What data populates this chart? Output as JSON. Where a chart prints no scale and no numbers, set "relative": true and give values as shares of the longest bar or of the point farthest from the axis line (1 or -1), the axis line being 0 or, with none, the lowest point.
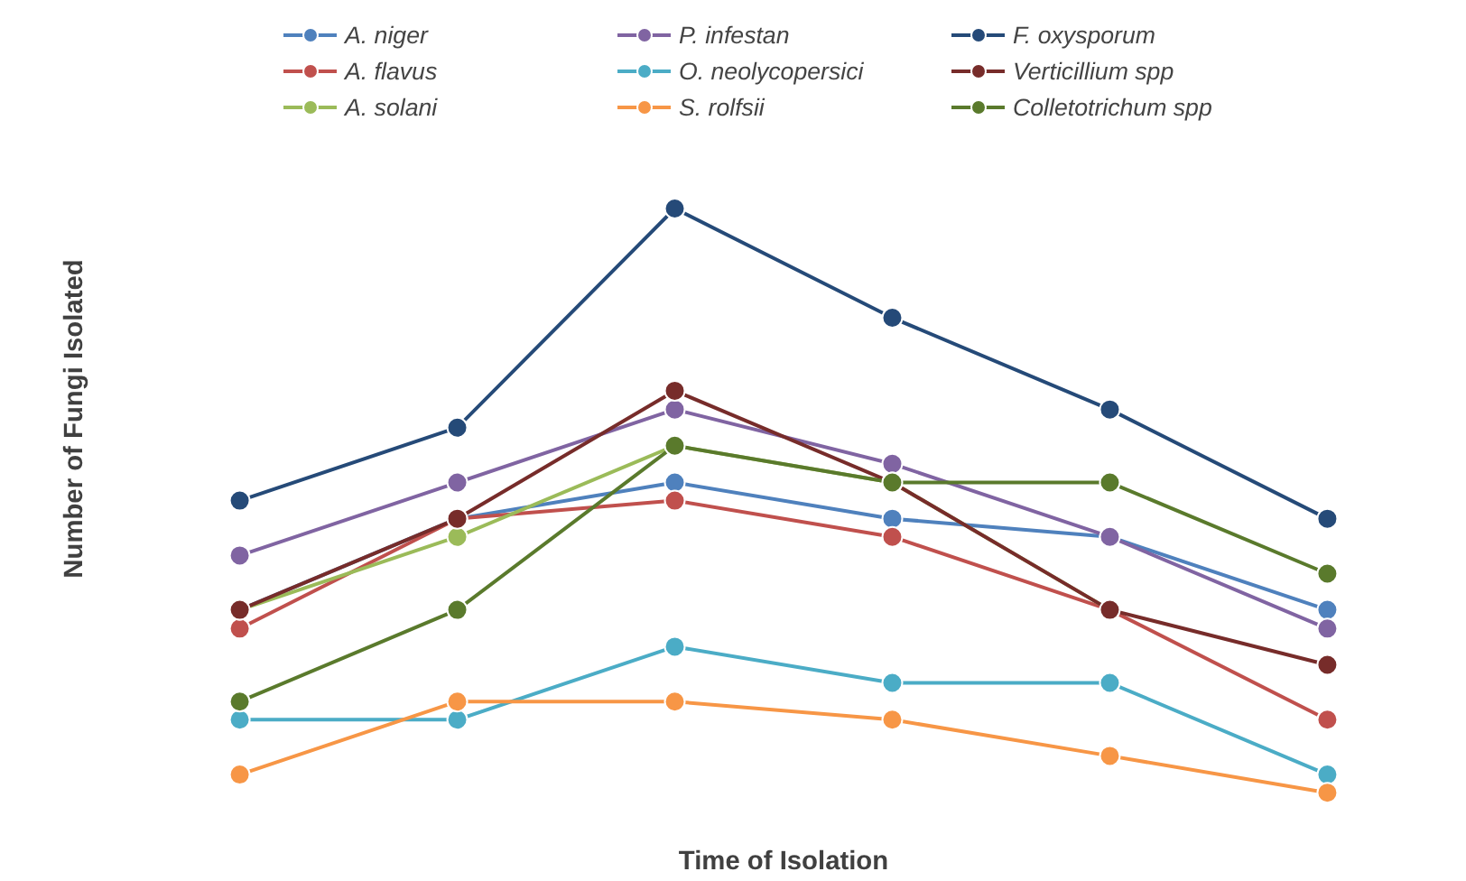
{
  "chart_data": {
    "type": "line",
    "relative": true,
    "xlabel": "Time of Isolation",
    "ylabel": "Number of Fungi Isolated",
    "categories": [
      null,
      null,
      null,
      null,
      null,
      null
    ],
    "marker": "circle",
    "line_style": "solid",
    "legend": "top",
    "grid": false,
    "tick_labels": false,
    "series": [
      {
        "name": "A. niger",
        "color": "#4f81bd",
        "values": [
          0.313,
          0.469,
          0.531,
          0.469,
          0.438,
          0.313
        ]
      },
      {
        "name": "A. flavus",
        "color": "#c0504d",
        "values": [
          0.281,
          0.469,
          0.5,
          0.438,
          0.313,
          0.125
        ]
      },
      {
        "name": "A. solani",
        "color": "#9bbb59",
        "values": [
          0.313,
          0.438,
          0.594,
          0.531,
          0.313,
          null
        ]
      },
      {
        "name": "P. infestan",
        "color": "#8064a2",
        "values": [
          0.406,
          0.531,
          0.656,
          0.563,
          0.438,
          0.281
        ]
      },
      {
        "name": "O. neolycopersici",
        "color": "#4bacc6",
        "values": [
          0.125,
          0.125,
          0.25,
          0.188,
          0.188,
          0.031
        ]
      },
      {
        "name": "S. rolfsii",
        "color": "#f79646",
        "values": [
          0.031,
          0.156,
          0.156,
          0.125,
          0.063,
          0.0
        ]
      },
      {
        "name": "F. oxysporum",
        "color": "#254a78",
        "values": [
          0.5,
          0.625,
          1.0,
          0.813,
          0.656,
          0.469
        ]
      },
      {
        "name": "Verticillium spp",
        "color": "#772c2a",
        "values": [
          0.313,
          0.469,
          0.688,
          0.531,
          0.313,
          0.219
        ]
      },
      {
        "name": "Colletotrichum spp",
        "color": "#5a7a2c",
        "values": [
          0.156,
          0.313,
          0.594,
          0.531,
          0.531,
          0.375
        ]
      }
    ]
  }
}
